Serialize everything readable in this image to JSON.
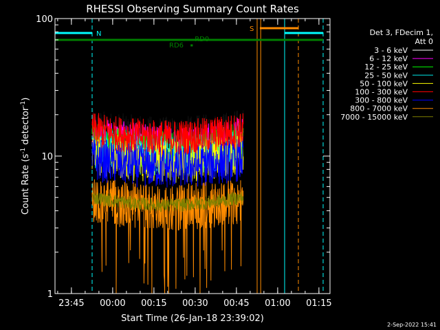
{
  "chart_data": {
    "type": "line",
    "title": "RHESSI Observing Summary Count Rates",
    "xlabel": "Start Time (26-Jan-18 23:39:02)",
    "ylabel_main": "Count Rate (s",
    "ylabel_sup1": "-1",
    "ylabel_mid": " detector",
    "ylabel_sup2": "-1",
    "ylabel_end": ")",
    "y_scale": "log",
    "ylim": [
      1,
      100
    ],
    "y_ticks": [
      {
        "value": 1,
        "label": "1"
      },
      {
        "value": 10,
        "label": "10"
      },
      {
        "value": 100,
        "label": "100"
      }
    ],
    "x_unit": "minutes since 23:39:02",
    "xlim": [
      0,
      100
    ],
    "x_ticks": [
      {
        "value": 5.97,
        "label": "23:45"
      },
      {
        "value": 20.97,
        "label": "00:00"
      },
      {
        "value": 35.97,
        "label": "00:15"
      },
      {
        "value": 50.97,
        "label": "00:30"
      },
      {
        "value": 65.97,
        "label": "00:45"
      },
      {
        "value": 80.97,
        "label": "01:00"
      },
      {
        "value": 95.97,
        "label": "01:15"
      }
    ],
    "data_window": [
      13.5,
      68.5
    ],
    "legend_header": [
      "Det 3, FDecim 1,",
      "Att 0"
    ],
    "series": [
      {
        "name": "3 - 6 keV",
        "color": "#000000",
        "level": 16,
        "spread": 0.14
      },
      {
        "name": "6 - 12 keV",
        "color": "#ff00ff",
        "level": 14,
        "spread": 0.14
      },
      {
        "name": "12 - 25 keV",
        "color": "#00ff00",
        "level": 12.5,
        "spread": 0.15
      },
      {
        "name": "25 - 50 keV",
        "color": "#00e5e5",
        "level": 11.5,
        "spread": 0.15
      },
      {
        "name": "50 - 100 keV",
        "color": "#ffff00",
        "level": 10.5,
        "spread": 0.16
      },
      {
        "name": "100 - 300 keV",
        "color": "#ff0000",
        "level": 15.5,
        "spread": 0.13
      },
      {
        "name": "300 - 800 keV",
        "color": "#0000ff",
        "level": 9.5,
        "spread": 0.16
      },
      {
        "name": "800 - 7000 keV",
        "color": "#ff8c00",
        "level": 4.8,
        "spread": 0.17
      },
      {
        "name": "7000 - 15000 keV",
        "color": "#808000",
        "level": 5,
        "spread": 0.05
      }
    ],
    "annotations": {
      "N": "N",
      "S": "S",
      "RD0": "RD0",
      "RD6": "RD6"
    },
    "intervals": {
      "night_cyan": [
        [
          0,
          13.5
        ],
        [
          83.5,
          97.5
        ]
      ],
      "saa_orange": [
        [
          74.5,
          88.5
        ]
      ],
      "rd0_green": [
        [
          0,
          97.5
        ]
      ],
      "rd6_green": [
        [
          49.3,
          50.1
        ]
      ]
    },
    "vlines": [
      {
        "x": 0,
        "color": "#00ffff",
        "style": "solid"
      },
      {
        "x": 13.5,
        "color": "#00ffff",
        "style": "dashed"
      },
      {
        "x": 73.5,
        "color": "#ff8c00",
        "style": "solid"
      },
      {
        "x": 74.8,
        "color": "#ff8c00",
        "style": "solid"
      },
      {
        "x": 83.5,
        "color": "#00ffff",
        "style": "solid"
      },
      {
        "x": 88.5,
        "color": "#ff8c00",
        "style": "dashed"
      },
      {
        "x": 97.5,
        "color": "#00ffff",
        "style": "dashed"
      }
    ],
    "footer_date": "2-Sep-2022 15:41"
  }
}
